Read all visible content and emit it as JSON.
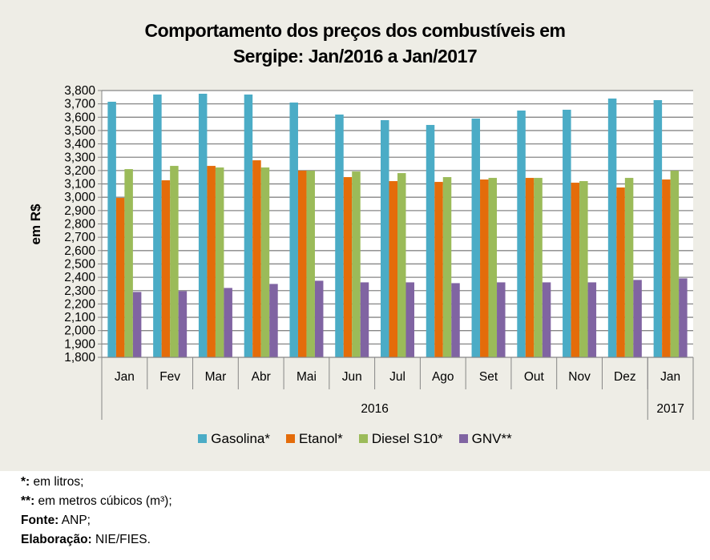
{
  "chart_data": {
    "type": "bar",
    "title_lines": [
      "Comportamento dos preços dos combustíveis em",
      "Sergipe: Jan/2016 a Jan/2017"
    ],
    "ylabel": "em R$",
    "xlabel": "",
    "ylim": [
      1.8,
      3.8
    ],
    "ytick_step": 0.1,
    "ytick_labels": [
      "1,800",
      "1,900",
      "2,000",
      "2,100",
      "2,200",
      "2,300",
      "2,400",
      "2,500",
      "2,600",
      "2,700",
      "2,800",
      "2,900",
      "3,000",
      "3,100",
      "3,200",
      "3,300",
      "3,400",
      "3,500",
      "3,600",
      "3,700",
      "3,800"
    ],
    "grid": true,
    "categories": [
      "Jan",
      "Fev",
      "Mar",
      "Abr",
      "Mai",
      "Jun",
      "Jul",
      "Ago",
      "Set",
      "Out",
      "Nov",
      "Dez",
      "Jan"
    ],
    "category_groups": [
      {
        "label": "2016",
        "count": 12
      },
      {
        "label": "2017",
        "count": 1
      }
    ],
    "series": [
      {
        "name": "Gasolina*",
        "color": "#4bacc6",
        "values": [
          3.716,
          3.77,
          3.776,
          3.77,
          3.71,
          3.62,
          3.578,
          3.542,
          3.59,
          3.65,
          3.656,
          3.74,
          3.728
        ]
      },
      {
        "name": "Etanol*",
        "color": "#e46c0a",
        "values": [
          2.995,
          3.127,
          3.235,
          3.277,
          3.199,
          3.151,
          3.121,
          3.115,
          3.133,
          3.145,
          3.109,
          3.073,
          3.133
        ]
      },
      {
        "name": "Diesel S10*",
        "color": "#9bbb59",
        "values": [
          3.211,
          3.235,
          3.223,
          3.223,
          3.199,
          3.193,
          3.181,
          3.151,
          3.145,
          3.145,
          3.121,
          3.145,
          3.199
        ]
      },
      {
        "name": "GNV**",
        "color": "#8064a2",
        "values": [
          2.29,
          2.296,
          2.32,
          2.35,
          2.374,
          2.362,
          2.362,
          2.356,
          2.362,
          2.362,
          2.362,
          2.38,
          2.392
        ]
      }
    ],
    "legend_position": "bottom"
  },
  "notes": [
    {
      "key": "*:",
      "text": " em litros;"
    },
    {
      "key": "**:",
      "text": " em metros cúbicos (m³);"
    },
    {
      "key": "Fonte:",
      "text": " ANP;"
    },
    {
      "key": "Elaboração:",
      "text": " NIE/FIES."
    }
  ]
}
